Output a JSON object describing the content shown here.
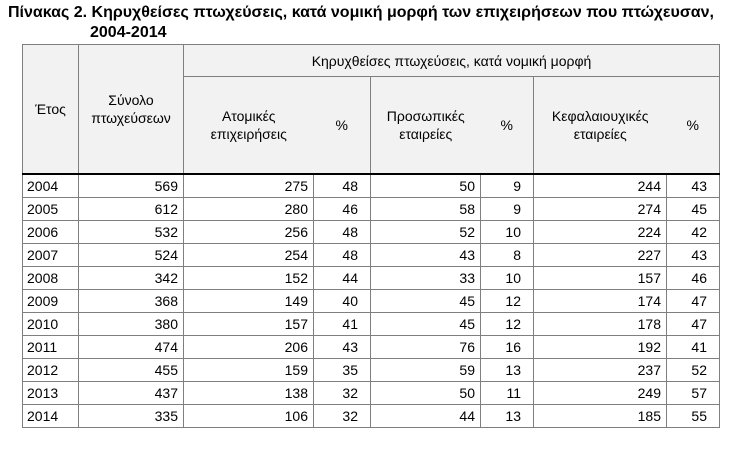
{
  "title": {
    "line1": "Πίνακας 2. Κηρυχθείσες πτωχεύσεις, κατά νομική μορφή των επιχειρήσεων που πτώχευσαν,",
    "line2": "2004-2014"
  },
  "headers": {
    "year": "Έτος",
    "total": "Σύνολο πτωχεύσεων",
    "group": "Κηρυχθείσες πτωχεύσεις, κατά νομική μορφή",
    "individual": "Ατομικές επιχειρήσεις",
    "pct1": "%",
    "personal": "Προσωπικές εταιρείες",
    "pct2": "%",
    "capital": "Κεφαλαιουχικές εταιρείες",
    "pct3": "%"
  },
  "rows": [
    {
      "year": "2004",
      "total": "569",
      "individual": "275",
      "pct1": "48",
      "personal": "50",
      "pct2": "9",
      "capital": "244",
      "pct3": "43"
    },
    {
      "year": "2005",
      "total": "612",
      "individual": "280",
      "pct1": "46",
      "personal": "58",
      "pct2": "9",
      "capital": "274",
      "pct3": "45"
    },
    {
      "year": "2006",
      "total": "532",
      "individual": "256",
      "pct1": "48",
      "personal": "52",
      "pct2": "10",
      "capital": "224",
      "pct3": "42"
    },
    {
      "year": "2007",
      "total": "524",
      "individual": "254",
      "pct1": "48",
      "personal": "43",
      "pct2": "8",
      "capital": "227",
      "pct3": "43"
    },
    {
      "year": "2008",
      "total": "342",
      "individual": "152",
      "pct1": "44",
      "personal": "33",
      "pct2": "10",
      "capital": "157",
      "pct3": "46"
    },
    {
      "year": "2009",
      "total": "368",
      "individual": "149",
      "pct1": "40",
      "personal": "45",
      "pct2": "12",
      "capital": "174",
      "pct3": "47"
    },
    {
      "year": "2010",
      "total": "380",
      "individual": "157",
      "pct1": "41",
      "personal": "45",
      "pct2": "12",
      "capital": "178",
      "pct3": "47"
    },
    {
      "year": "2011",
      "total": "474",
      "individual": "206",
      "pct1": "43",
      "personal": "76",
      "pct2": "16",
      "capital": "192",
      "pct3": "41"
    },
    {
      "year": "2012",
      "total": "455",
      "individual": "159",
      "pct1": "35",
      "personal": "59",
      "pct2": "13",
      "capital": "237",
      "pct3": "52"
    },
    {
      "year": "2013",
      "total": "437",
      "individual": "138",
      "pct1": "32",
      "personal": "50",
      "pct2": "11",
      "capital": "249",
      "pct3": "57"
    },
    {
      "year": "2014",
      "total": "335",
      "individual": "106",
      "pct1": "32",
      "personal": "44",
      "pct2": "13",
      "capital": "185",
      "pct3": "55"
    }
  ]
}
